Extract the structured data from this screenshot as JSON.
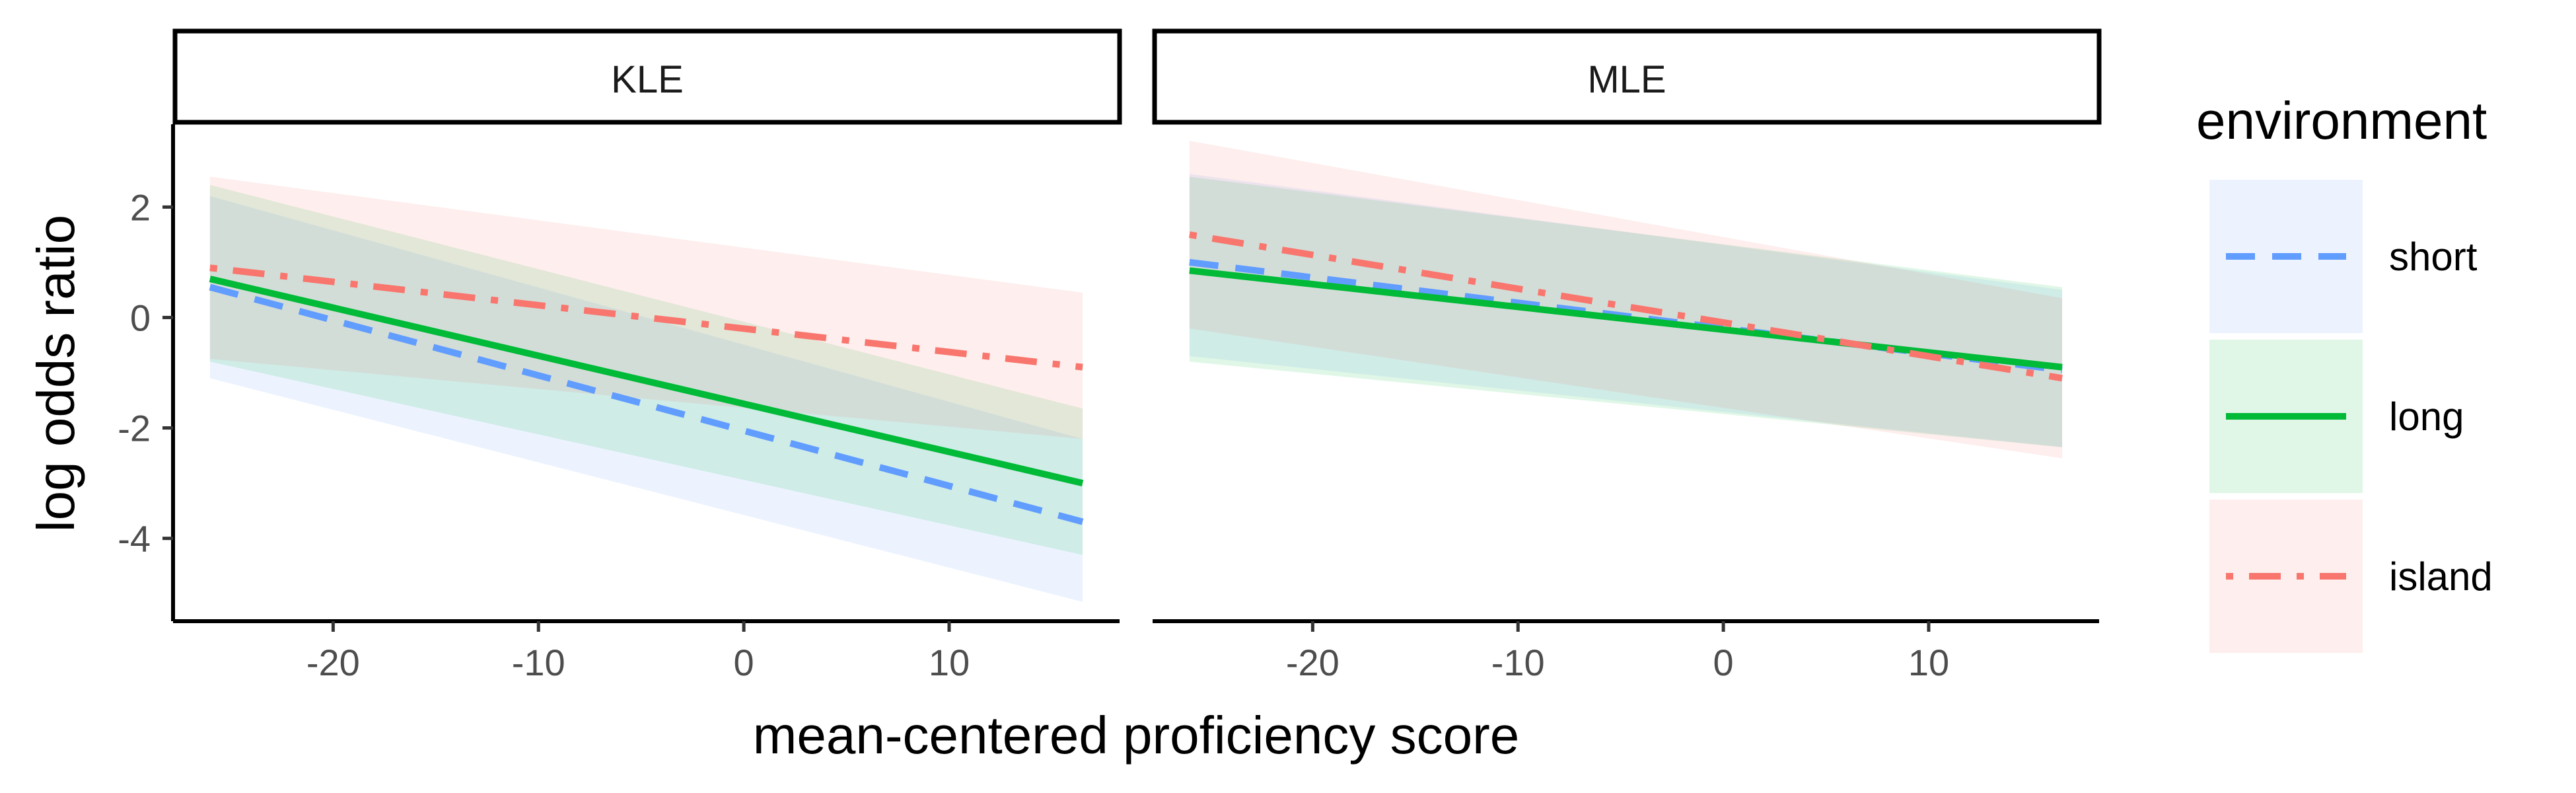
{
  "chart_data": {
    "type": "line",
    "facet_variable": "",
    "panels": [
      {
        "name": "KLE",
        "series": [
          {
            "name": "short",
            "x": [
              -26,
              16.5
            ],
            "y": [
              0.55,
              -3.7
            ],
            "ci_lower": [
              -1.1,
              -5.15
            ],
            "ci_upper": [
              2.2,
              -2.2
            ]
          },
          {
            "name": "long",
            "x": [
              -26,
              16.5
            ],
            "y": [
              0.7,
              -3.0
            ],
            "ci_lower": [
              -0.8,
              -4.3
            ],
            "ci_upper": [
              2.4,
              -1.65
            ]
          },
          {
            "name": "island",
            "x": [
              -26,
              16.5
            ],
            "y": [
              0.9,
              -0.9
            ],
            "ci_lower": [
              -0.75,
              -2.2
            ],
            "ci_upper": [
              2.55,
              0.45
            ]
          }
        ]
      },
      {
        "name": "MLE",
        "series": [
          {
            "name": "short",
            "x": [
              -26,
              16.5
            ],
            "y": [
              1.0,
              -0.95
            ],
            "ci_lower": [
              -0.7,
              -2.35
            ],
            "ci_upper": [
              2.6,
              0.5
            ]
          },
          {
            "name": "long",
            "x": [
              -26,
              16.5
            ],
            "y": [
              0.85,
              -0.9
            ],
            "ci_lower": [
              -0.8,
              -2.35
            ],
            "ci_upper": [
              2.55,
              0.55
            ]
          },
          {
            "name": "island",
            "x": [
              -26,
              16.5
            ],
            "y": [
              1.5,
              -1.1
            ],
            "ci_lower": [
              -0.2,
              -2.55
            ],
            "ci_upper": [
              3.2,
              0.35
            ]
          }
        ]
      }
    ],
    "xlabel": "mean-centered proficiency score",
    "ylabel": "log odds ratio",
    "xlim": [
      -27.7,
      18.3
    ],
    "ylim": [
      -5.5,
      3.5
    ],
    "x_ticks": [
      -20,
      -10,
      0,
      10
    ],
    "x_tick_labels": [
      "-20",
      "-10",
      "0",
      "10"
    ],
    "y_ticks": [
      2,
      0,
      -2,
      -4
    ],
    "y_tick_labels": [
      "2",
      "0",
      "-2",
      "-4"
    ],
    "grid": false,
    "legend": {
      "title": "environment",
      "position": "right",
      "items": [
        {
          "label": "short",
          "color": "#619CFF",
          "fill": "#619CFF",
          "dash": "dashed"
        },
        {
          "label": "long",
          "color": "#00BA38",
          "fill": "#00BA38",
          "dash": "solid"
        },
        {
          "label": "island",
          "color": "#F8766D",
          "fill": "#F8766D",
          "dash": "dotdash"
        }
      ]
    },
    "ribbon_opacity": 0.12
  }
}
